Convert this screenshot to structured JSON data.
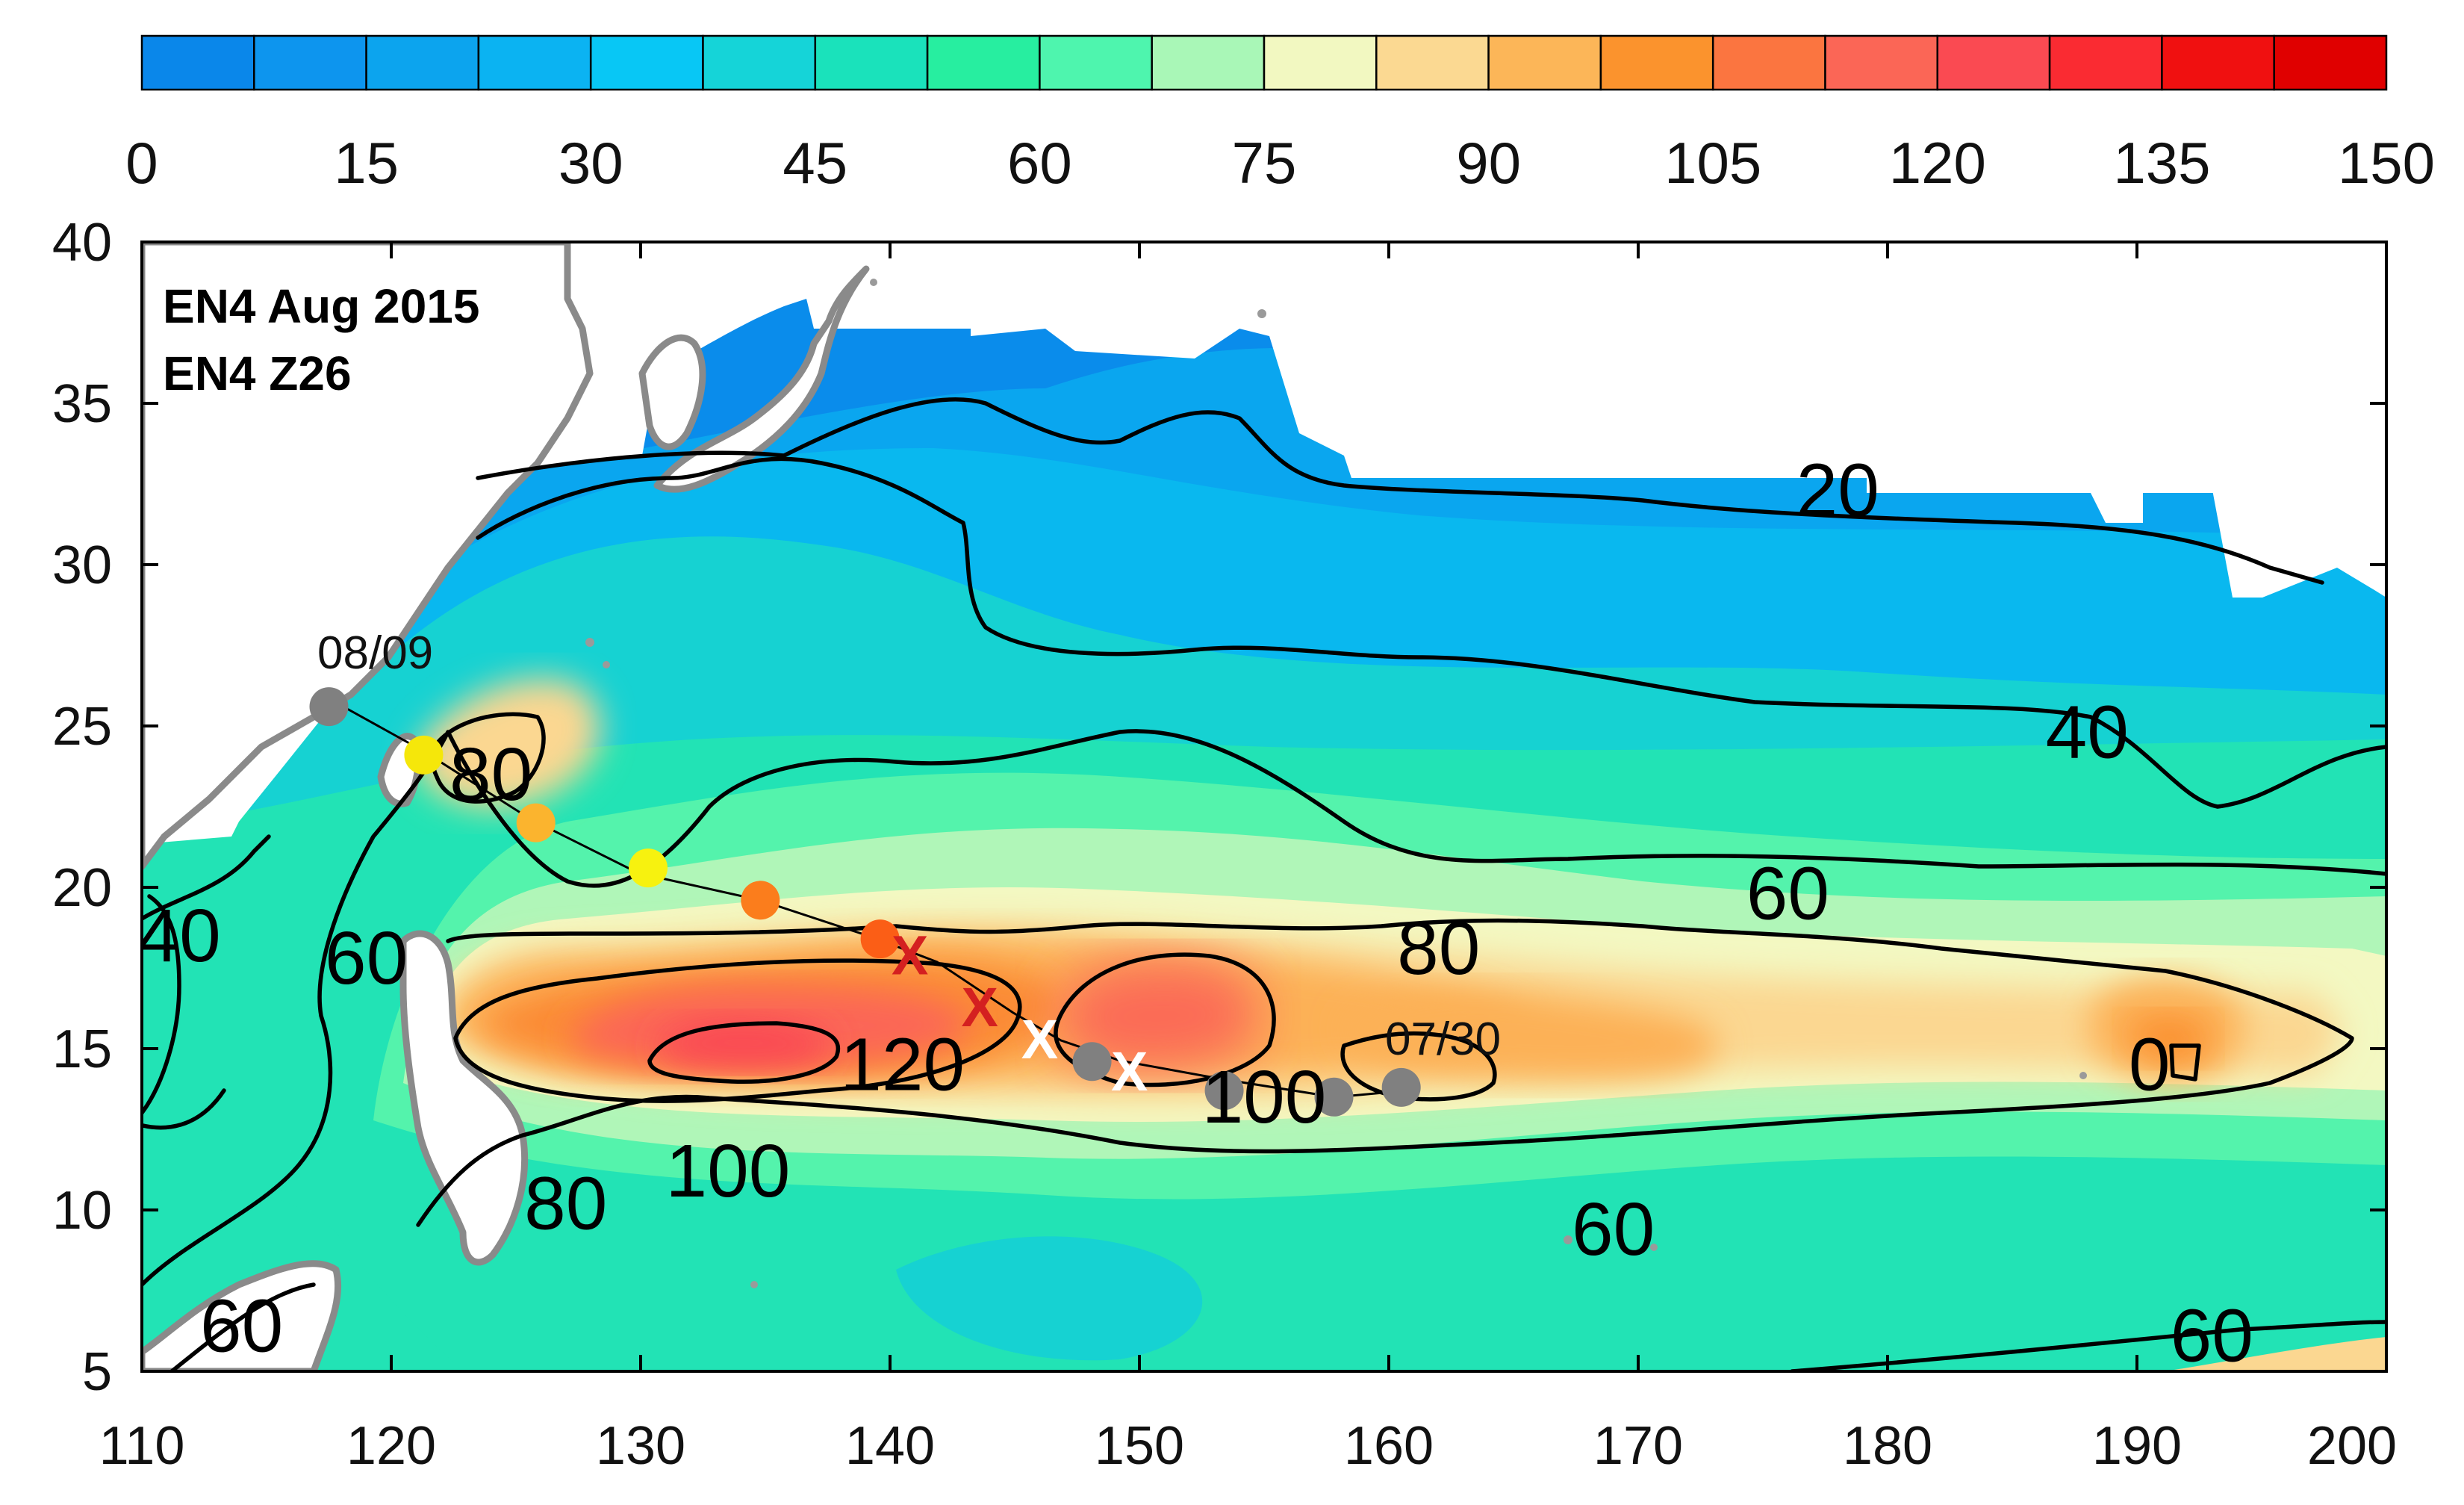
{
  "colorbar": {
    "ticks": [
      "0",
      "15",
      "30",
      "45",
      "60",
      "75",
      "90",
      "105",
      "120",
      "135",
      "150"
    ],
    "colors": [
      "#0a87ea",
      "#0d95ee",
      "#0ca4ee",
      "#0bb3f2",
      "#08c7f5",
      "#15d4d8",
      "#1ae2bb",
      "#27eea0",
      "#4ef5ae",
      "#a9f7b7",
      "#f2f8c1",
      "#fbd992",
      "#fcb658",
      "#fb932d",
      "#fb7540",
      "#fb6656",
      "#fa4a52",
      "#fa2b32",
      "#f01010",
      "#e00000"
    ]
  },
  "axes": {
    "x_ticks": [
      "110",
      "120",
      "130",
      "140",
      "150",
      "160",
      "170",
      "180",
      "190",
      "200"
    ],
    "y_ticks": [
      "5",
      "10",
      "15",
      "20",
      "25",
      "30",
      "35",
      "40"
    ],
    "xlim": [
      110,
      200
    ],
    "ylim": [
      5,
      40
    ]
  },
  "panel_title": {
    "line1": "EN4 Aug 2015",
    "line2": "EN4 Z26"
  },
  "contour_labels": [
    {
      "text": "20",
      "lon": 178,
      "lat": 32.3
    },
    {
      "text": "40",
      "lon": 188,
      "lat": 24.8
    },
    {
      "text": "60",
      "lon": 176,
      "lat": 19.8
    },
    {
      "text": "80",
      "lon": 162,
      "lat": 18.1
    },
    {
      "text": "80",
      "lon": 124,
      "lat": 23.5
    },
    {
      "text": "60",
      "lon": 119,
      "lat": 17.8
    },
    {
      "text": "40",
      "lon": 111.5,
      "lat": 18.5
    },
    {
      "text": "120",
      "lon": 140.5,
      "lat": 14.5
    },
    {
      "text": "100",
      "lon": 133.5,
      "lat": 11.2
    },
    {
      "text": "80",
      "lon": 127,
      "lat": 10.2
    },
    {
      "text": "100",
      "lon": 155,
      "lat": 13.5
    },
    {
      "text": "60",
      "lon": 169,
      "lat": 9.4
    },
    {
      "text": "60",
      "lon": 114,
      "lat": 6.4
    },
    {
      "text": "60",
      "lon": 193,
      "lat": 6.1
    },
    {
      "text": "0",
      "lon": 190.5,
      "lat": 14.5
    }
  ],
  "track_points": [
    {
      "lon": 117.5,
      "lat": 25.6,
      "color": "#808080"
    },
    {
      "lon": 121.3,
      "lat": 24.1,
      "color": "#f5e70a"
    },
    {
      "lon": 125.8,
      "lat": 22.0,
      "color": "#fbb42e"
    },
    {
      "lon": 130.3,
      "lat": 20.6,
      "color": "#f7f20f"
    },
    {
      "lon": 134.8,
      "lat": 19.6,
      "color": "#fb7d1c"
    },
    {
      "lon": 139.6,
      "lat": 18.4,
      "color": "#fb5e16"
    },
    {
      "lon": 148.1,
      "lat": 14.6,
      "color": "#808080"
    },
    {
      "lon": 153.4,
      "lat": 13.7,
      "color": "#808080"
    },
    {
      "lon": 157.8,
      "lat": 13.5,
      "color": "#808080"
    },
    {
      "lon": 160.5,
      "lat": 13.8,
      "color": "#808080"
    }
  ],
  "track_marks": [
    {
      "text": "X",
      "lon": 140.8,
      "lat": 17.9,
      "color": "#d42020"
    },
    {
      "text": "X",
      "lon": 143.6,
      "lat": 16.3,
      "color": "#d42020"
    },
    {
      "text": "X",
      "lon": 146.0,
      "lat": 15.3,
      "color": "#ffffff"
    },
    {
      "text": "X",
      "lon": 149.6,
      "lat": 14.3,
      "color": "#ffffff"
    }
  ],
  "track_dates": {
    "start": "08/09",
    "end": "07/30"
  }
}
